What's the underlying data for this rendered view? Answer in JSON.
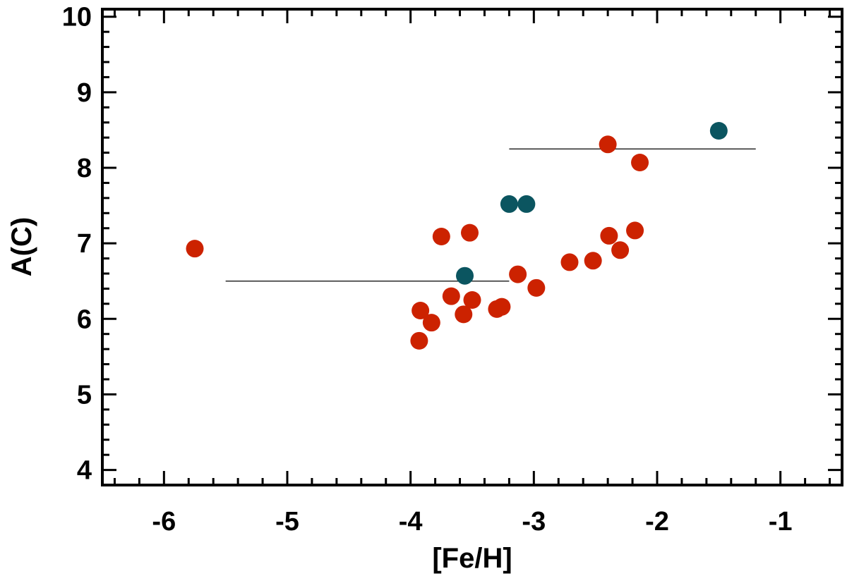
{
  "chart_data": {
    "type": "scatter",
    "xlabel": "[Fe/H]",
    "ylabel": "A(C)",
    "xlim": [
      -6.5,
      -0.5
    ],
    "ylim": [
      3.8,
      10.1
    ],
    "xticks": [
      -6,
      -5,
      -4,
      -3,
      -2,
      -1
    ],
    "yticks": [
      4,
      5,
      6,
      7,
      8,
      9,
      10
    ],
    "grid": false,
    "series": [
      {
        "color": "#cc2200",
        "points": [
          {
            "x": -5.75,
            "y": 6.93
          },
          {
            "x": -3.93,
            "y": 5.71
          },
          {
            "x": -3.92,
            "y": 6.11
          },
          {
            "x": -3.83,
            "y": 5.95
          },
          {
            "x": -3.75,
            "y": 7.09
          },
          {
            "x": -3.67,
            "y": 6.3
          },
          {
            "x": -3.57,
            "y": 6.06
          },
          {
            "x": -3.52,
            "y": 7.14
          },
          {
            "x": -3.5,
            "y": 6.25
          },
          {
            "x": -3.3,
            "y": 6.13
          },
          {
            "x": -3.26,
            "y": 6.16
          },
          {
            "x": -3.13,
            "y": 6.59
          },
          {
            "x": -2.98,
            "y": 6.41
          },
          {
            "x": -2.71,
            "y": 6.75
          },
          {
            "x": -2.52,
            "y": 6.77
          },
          {
            "x": -2.4,
            "y": 8.31
          },
          {
            "x": -2.39,
            "y": 7.1
          },
          {
            "x": -2.3,
            "y": 6.91
          },
          {
            "x": -2.18,
            "y": 7.17
          },
          {
            "x": -2.14,
            "y": 8.07
          }
        ]
      },
      {
        "color": "#0b5560",
        "points": [
          {
            "x": -3.56,
            "y": 6.57
          },
          {
            "x": -3.2,
            "y": 7.52
          },
          {
            "x": -3.06,
            "y": 7.52
          },
          {
            "x": -1.5,
            "y": 8.49
          }
        ]
      }
    ],
    "reference_lines": [
      {
        "x": [
          -5.5,
          -3.2
        ],
        "y": 6.5
      },
      {
        "x": [
          -3.2,
          -1.2
        ],
        "y": 8.25
      }
    ]
  }
}
